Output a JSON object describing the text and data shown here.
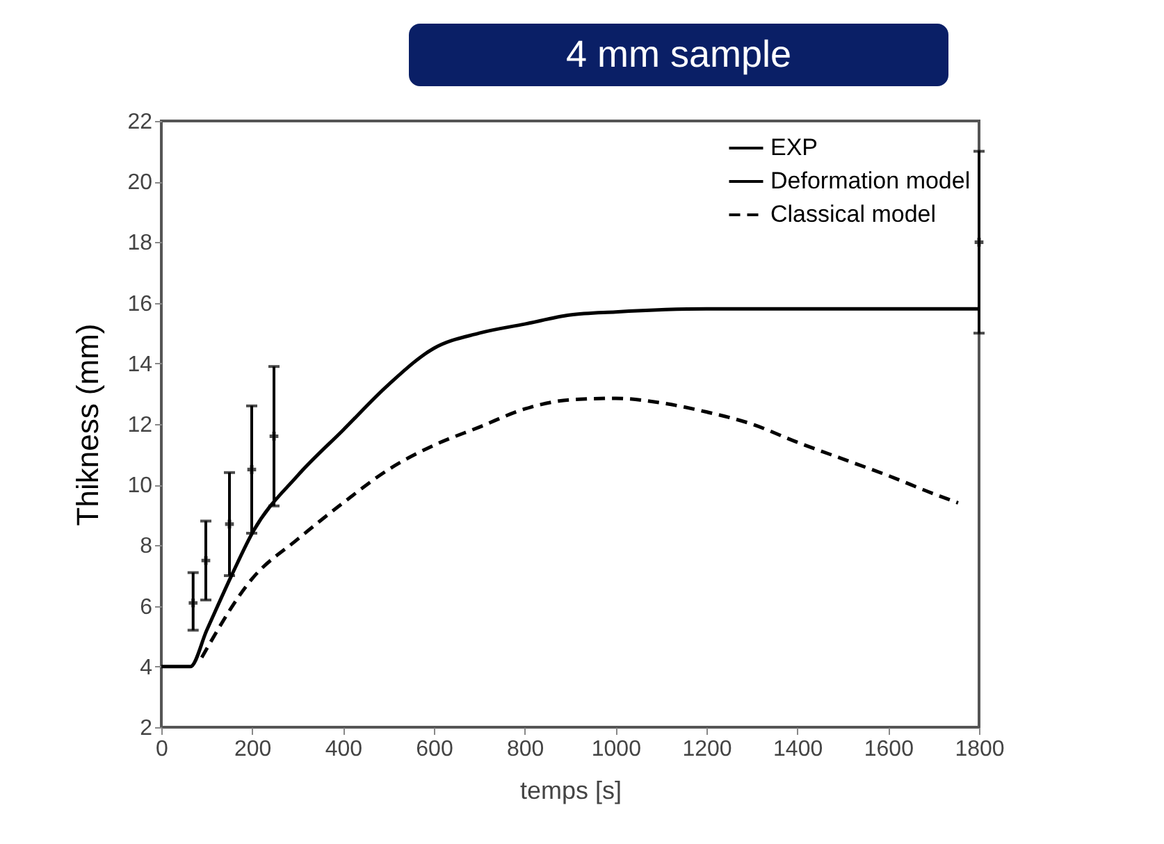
{
  "chart_data": {
    "type": "line",
    "title": "4 mm sample",
    "xlabel": "temps [s]",
    "ylabel": "Thikness (mm)",
    "xlim": [
      0,
      1800
    ],
    "xticks": [
      0,
      200,
      400,
      600,
      800,
      1000,
      1200,
      1400,
      1600,
      1800
    ],
    "ylim": [
      2,
      22
    ],
    "yticks": [
      2,
      4,
      6,
      8,
      10,
      12,
      14,
      16,
      18,
      20,
      22
    ],
    "grid": false,
    "legend": "top right",
    "series": [
      {
        "name": "EXP",
        "type": "scatter",
        "color": "#000000",
        "marker": "cross",
        "x": [
          70,
          98,
          150,
          199,
          248,
          1800
        ],
        "values": [
          6.1,
          7.5,
          8.7,
          10.5,
          11.6,
          18.0
        ],
        "errors": [
          [
            5.2,
            7.1
          ],
          [
            6.2,
            8.8
          ],
          [
            7.0,
            10.4
          ],
          [
            8.4,
            12.6
          ],
          [
            9.3,
            13.9
          ],
          [
            15.0,
            21.0
          ]
        ]
      },
      {
        "name": "Deformation model",
        "color": "#000000",
        "line_style": "solid",
        "x": [
          0,
          64,
          100,
          156,
          200,
          300,
          400,
          500,
          600,
          700,
          800,
          900,
          1000,
          1200,
          1500,
          1800
        ],
        "values": [
          4.0,
          4.0,
          5.2,
          7.05,
          8.4,
          10.3,
          11.8,
          13.3,
          14.5,
          15.0,
          15.3,
          15.6,
          15.7,
          15.8,
          15.8,
          15.8
        ]
      },
      {
        "name": "Classical model",
        "color": "#000000",
        "line_style": "dashed",
        "x": [
          89,
          200,
          300,
          400,
          500,
          600,
          700,
          800,
          900,
          1000,
          1100,
          1200,
          1300,
          1400,
          1500,
          1600,
          1700,
          1754
        ],
        "values": [
          4.3,
          6.9,
          8.2,
          9.4,
          10.5,
          11.3,
          11.9,
          12.5,
          12.8,
          12.85,
          12.7,
          12.4,
          12.0,
          11.4,
          10.85,
          10.3,
          9.7,
          9.4
        ]
      }
    ]
  }
}
